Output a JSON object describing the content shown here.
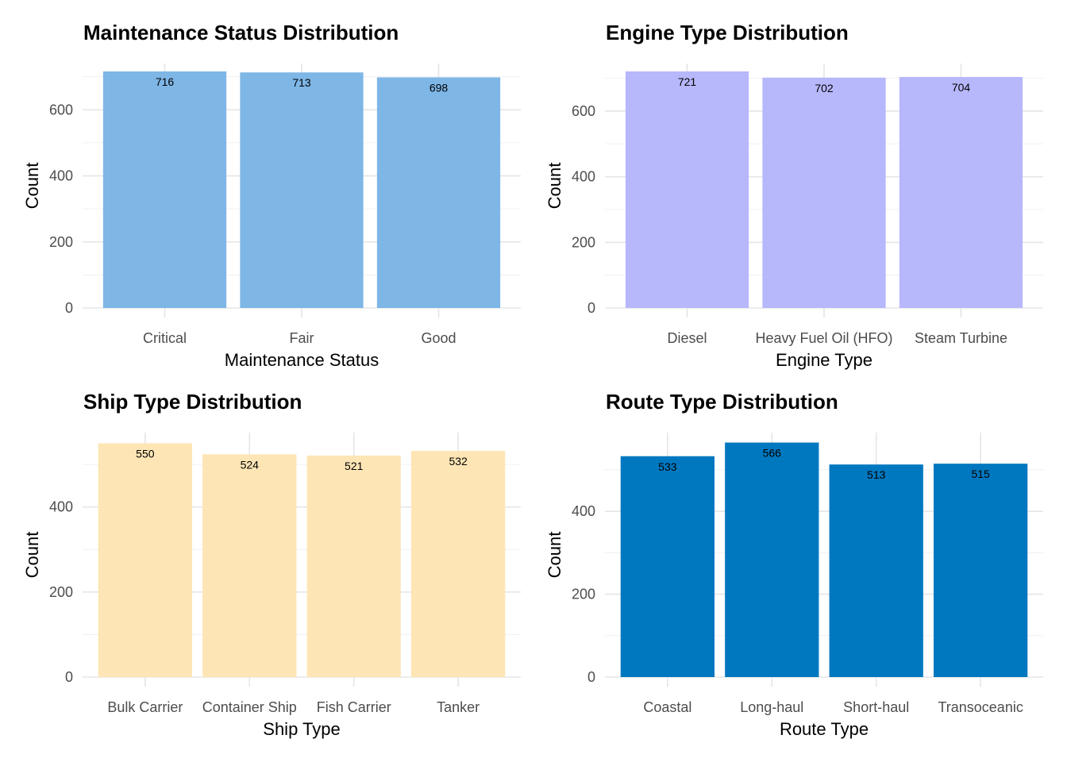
{
  "chart_data": [
    {
      "type": "bar",
      "title": "Maintenance Status Distribution",
      "xlabel": "Maintenance Status",
      "ylabel": "Count",
      "categories": [
        "Critical",
        "Fair",
        "Good"
      ],
      "values": [
        716,
        713,
        698
      ],
      "yticks": [
        0,
        200,
        400,
        600
      ],
      "ylim": [
        0,
        740
      ],
      "grid": true,
      "legend": "none",
      "color": "#7EB6E6"
    },
    {
      "type": "bar",
      "title": "Engine Type Distribution",
      "xlabel": "Engine Type",
      "ylabel": "Count",
      "categories": [
        "Diesel",
        "Heavy Fuel Oil (HFO)",
        "Steam Turbine"
      ],
      "values": [
        721,
        702,
        704
      ],
      "yticks": [
        0,
        200,
        400,
        600
      ],
      "ylim": [
        0,
        745
      ],
      "grid": true,
      "legend": "none",
      "color": "#B7B7FC"
    },
    {
      "type": "bar",
      "title": "Ship Type Distribution",
      "xlabel": "Ship Type",
      "ylabel": "Count",
      "categories": [
        "Bulk Carrier",
        "Container Ship",
        "Fish Carrier",
        "Tanker"
      ],
      "values": [
        550,
        524,
        521,
        532
      ],
      "yticks": [
        0,
        200,
        400
      ],
      "ylim": [
        0,
        575
      ],
      "grid": true,
      "legend": "none",
      "color": "#FEE5B5"
    },
    {
      "type": "bar",
      "title": "Route Type Distribution",
      "xlabel": "Route Type",
      "ylabel": "Count",
      "categories": [
        "Coastal",
        "Long-haul",
        "Short-haul",
        "Transoceanic"
      ],
      "values": [
        533,
        566,
        513,
        515
      ],
      "yticks": [
        0,
        200,
        400
      ],
      "ylim": [
        0,
        590
      ],
      "grid": true,
      "legend": "none",
      "color": "#0078C0"
    }
  ]
}
